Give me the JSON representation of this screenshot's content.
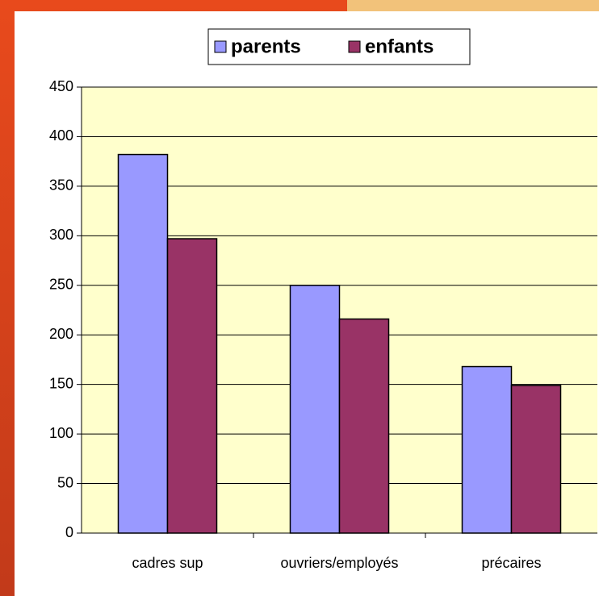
{
  "chart_data": {
    "type": "bar",
    "categories": [
      "cadres sup",
      "ouvriers/employés",
      "précaires"
    ],
    "series": [
      {
        "name": "parents",
        "color": "#9999ff",
        "values": [
          382,
          250,
          168
        ]
      },
      {
        "name": "enfants",
        "color": "#993366",
        "values": [
          297,
          216,
          149
        ]
      }
    ],
    "ylim": [
      0,
      450
    ],
    "yticks": [
      0,
      50,
      100,
      150,
      200,
      250,
      300,
      350,
      400,
      450
    ],
    "grid": true,
    "legend": "top"
  }
}
